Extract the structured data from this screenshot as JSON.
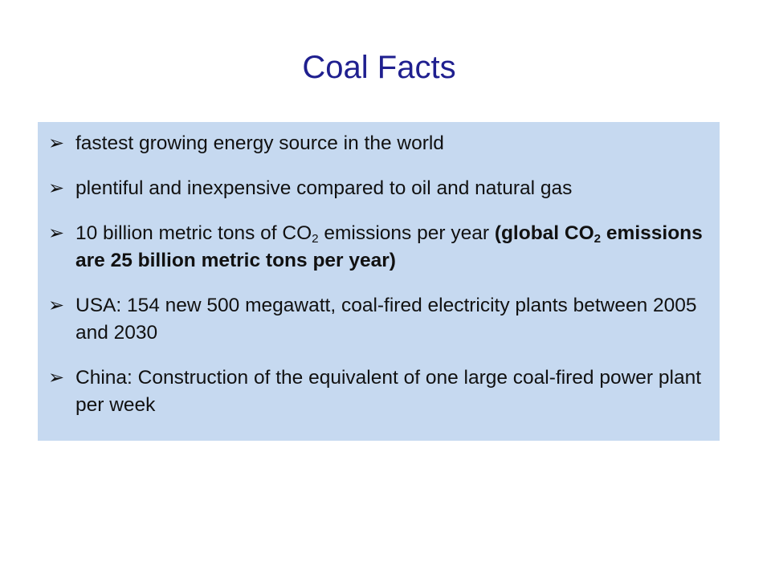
{
  "slide": {
    "title": "Coal Facts",
    "bullet_icon": "arrow-right-bullet-icon",
    "bullets": [
      {
        "text": "fastest growing energy source in the world"
      },
      {
        "text": "plentiful and inexpensive compared to oil and natural gas"
      },
      {
        "part1": "10 billion metric tons of CO",
        "sub1": "2",
        "part2": " emissions per year ",
        "bold1": "(global CO",
        "sub2": "2",
        "bold2": " emissions are 25 billion metric tons per year)"
      },
      {
        "text": "USA: 154 new 500 megawatt, coal-fired electricity plants between 2005 and 2030"
      },
      {
        "text": "China: Construction of the equivalent of one large coal-fired power plant per week"
      }
    ]
  },
  "colors": {
    "title": "#1f1f8f",
    "box_background": "#c6d9f0",
    "text": "#111111"
  }
}
